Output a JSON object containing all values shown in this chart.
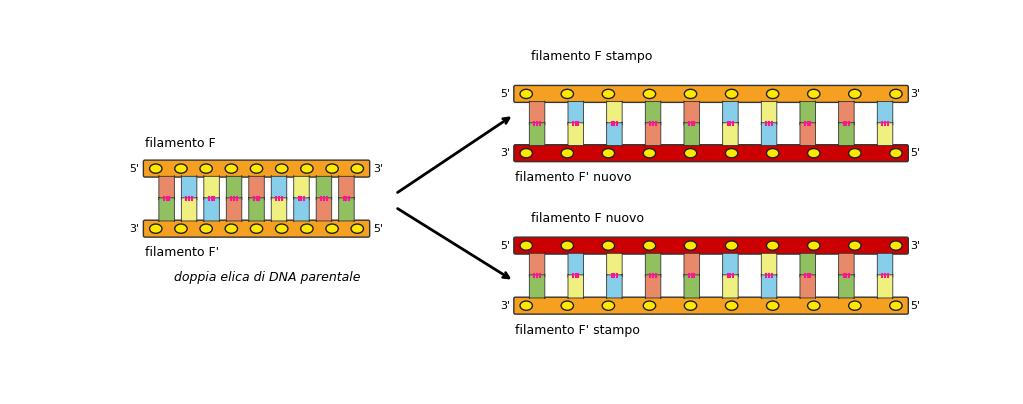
{
  "bg_color": "#ffffff",
  "orange_color": "#F5A020",
  "red_color": "#CC0000",
  "yellow_circle": "#FFE800",
  "circle_edge": "#222222",
  "base_colors": [
    "#E8896A",
    "#87CEEB",
    "#90C060",
    "#F0F080"
  ],
  "pink_bond": "#FF1493",
  "text_color": "#000000",
  "labels": {
    "filamento_F": "filamento F",
    "filamento_Fp": "filamento F'",
    "doppia_elica": "doppia elica di DNA parentale",
    "filamento_F_stampo": "filamento F stampo",
    "filamento_Fp_nuovo": "filamento F' nuovo",
    "filamento_F_nuovo": "filamento F nuovo",
    "filamento_Fp_stampo": "filamento F' stampo"
  }
}
